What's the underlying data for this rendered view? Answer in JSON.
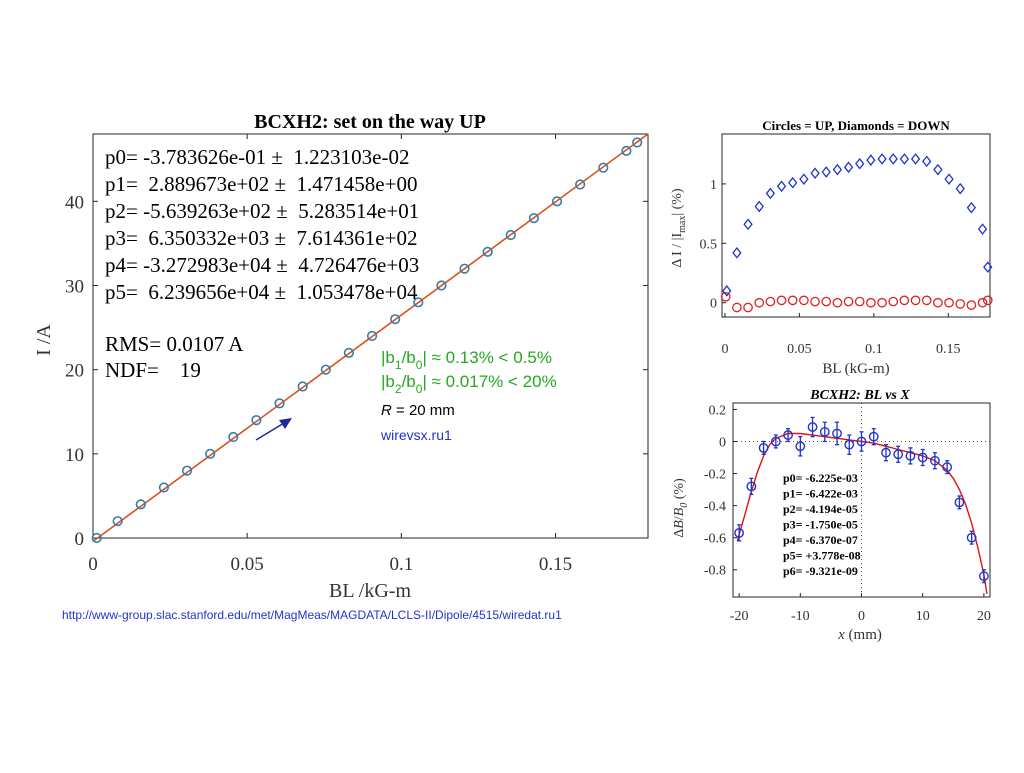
{
  "main": {
    "title": "BCXH2: set on the way UP",
    "xlabel": "BL /kG-m",
    "ylabel": "I /A",
    "fit_lines": [
      "p0= -3.783626e-01 ±  1.223103e-02",
      "p1=  2.889673e+02 ±  1.471458e+00",
      "p2= -5.639263e+02 ±  5.283514e+01",
      "p3=  6.350332e+03 ±  7.614361e+02",
      "p4= -3.272983e+04 ±  4.726476e+03",
      "p5=  6.239656e+04 ±  1.053478e+04"
    ],
    "rms": "RMS= 0.0107 A",
    "ndf": "NDF=    19",
    "b1": {
      "a": "|b",
      "s1": "1",
      "m": "/b",
      "s2": "0",
      "r": "| ≈ 0.13% < 0.5%"
    },
    "b2": {
      "a": "|b",
      "s1": "2",
      "m": "/b",
      "s2": "0",
      "r": "| ≈ 0.017% < 20%"
    },
    "radius": {
      "sym": "R",
      "val": " = 20 mm"
    },
    "source": "wirevsx.ru1",
    "url": "http://www-group.slac.stanford.edu/met/MagMeas/MAGDATA/LCLS-II/Dipole/4515/wiredat.ru1",
    "colors": {
      "points": "#3a7ca5",
      "fit": "#d95319",
      "green": "#22aa22",
      "blue": "#2233cc"
    }
  },
  "chart_data": [
    {
      "type": "scatter",
      "title": "BCXH2: set on the way UP",
      "xlabel": "BL /kG-m",
      "ylabel": "I /A",
      "xlim": [
        0,
        0.18
      ],
      "ylim": [
        0,
        48
      ],
      "xticks": [
        "0",
        "0.05",
        "0.1",
        "0.15"
      ],
      "yticks": [
        "0",
        "10",
        "20",
        "30",
        "40"
      ],
      "points": [
        [
          0.0012,
          0
        ],
        [
          0.008,
          2
        ],
        [
          0.0155,
          4
        ],
        [
          0.023,
          6
        ],
        [
          0.0305,
          8
        ],
        [
          0.038,
          10
        ],
        [
          0.0455,
          12
        ],
        [
          0.053,
          14
        ],
        [
          0.0605,
          16
        ],
        [
          0.068,
          18
        ],
        [
          0.0755,
          20
        ],
        [
          0.083,
          22
        ],
        [
          0.0905,
          24
        ],
        [
          0.098,
          26
        ],
        [
          0.1055,
          28
        ],
        [
          0.113,
          30
        ],
        [
          0.1205,
          32
        ],
        [
          0.128,
          34
        ],
        [
          0.1355,
          36
        ],
        [
          0.143,
          38
        ],
        [
          0.1505,
          40
        ],
        [
          0.158,
          42
        ],
        [
          0.1655,
          44
        ],
        [
          0.173,
          46
        ],
        [
          0.1765,
          47
        ]
      ],
      "fit_line": [
        [
          0,
          -0.4
        ],
        [
          0.18,
          48
        ]
      ]
    },
    {
      "type": "scatter",
      "title": "Circles = UP, Diamonds = DOWN",
      "xlabel": "BL (kG-m)",
      "ylabel": "Δ I / |I_max| (%)",
      "xlim": [
        -0.002,
        0.178
      ],
      "ylim": [
        -0.12,
        1.42
      ],
      "xticks": [
        "0",
        "0.05",
        "0.1",
        "0.15"
      ],
      "yticks": [
        "0",
        "0.5",
        "1"
      ],
      "series": [
        {
          "values": [
            [
              0.0005,
              0.05
            ],
            [
              0.008,
              -0.04
            ],
            [
              0.0155,
              -0.04
            ],
            [
              0.023,
              0.0
            ],
            [
              0.0305,
              0.01
            ],
            [
              0.038,
              0.02
            ],
            [
              0.0455,
              0.02
            ],
            [
              0.053,
              0.02
            ],
            [
              0.0605,
              0.01
            ],
            [
              0.068,
              0.01
            ],
            [
              0.0755,
              0.0
            ],
            [
              0.083,
              0.01
            ],
            [
              0.0905,
              0.01
            ],
            [
              0.098,
              0.0
            ],
            [
              0.1055,
              0.0
            ],
            [
              0.113,
              0.01
            ],
            [
              0.1205,
              0.02
            ],
            [
              0.128,
              0.02
            ],
            [
              0.1355,
              0.02
            ],
            [
              0.143,
              0.0
            ],
            [
              0.1505,
              0.0
            ],
            [
              0.158,
              -0.01
            ],
            [
              0.1655,
              -0.02
            ],
            [
              0.173,
              0.0
            ],
            [
              0.1765,
              0.02
            ]
          ]
        },
        {
          "values": [
            [
              0.0012,
              0.1
            ],
            [
              0.008,
              0.42
            ],
            [
              0.0155,
              0.66
            ],
            [
              0.023,
              0.81
            ],
            [
              0.0305,
              0.92
            ],
            [
              0.038,
              0.98
            ],
            [
              0.0455,
              1.01
            ],
            [
              0.053,
              1.04
            ],
            [
              0.0605,
              1.09
            ],
            [
              0.068,
              1.1
            ],
            [
              0.0755,
              1.12
            ],
            [
              0.083,
              1.14
            ],
            [
              0.0905,
              1.17
            ],
            [
              0.098,
              1.2
            ],
            [
              0.1055,
              1.21
            ],
            [
              0.113,
              1.21
            ],
            [
              0.1205,
              1.21
            ],
            [
              0.128,
              1.21
            ],
            [
              0.1355,
              1.19
            ],
            [
              0.143,
              1.12
            ],
            [
              0.1505,
              1.04
            ],
            [
              0.158,
              0.96
            ],
            [
              0.1655,
              0.8
            ],
            [
              0.173,
              0.62
            ],
            [
              0.1765,
              0.3
            ]
          ]
        }
      ]
    },
    {
      "type": "scatter",
      "title": "BCXH2: BL vs X",
      "xlabel": "x (mm)",
      "ylabel": "ΔB/B_0 (%)",
      "xlim": [
        -21,
        21
      ],
      "ylim": [
        -0.97,
        0.24
      ],
      "xticks": [
        "-20",
        "-10",
        "0",
        "10",
        "20"
      ],
      "yticks": [
        "0.2",
        "0",
        "-0.2",
        "-0.4",
        "-0.6",
        "-0.8"
      ],
      "fit_params": [
        "p0= -6.225e-03",
        "p1= -6.422e-03",
        "p2= -4.194e-05",
        "p3= -1.750e-05",
        "p4= -6.370e-07",
        "p5= +3.778e-08",
        "p6= -9.321e-09"
      ],
      "points": [
        {
          "x": -20,
          "y": -0.57,
          "err": 0.05
        },
        {
          "x": -18,
          "y": -0.28,
          "err": 0.05
        },
        {
          "x": -16,
          "y": -0.04,
          "err": 0.04
        },
        {
          "x": -14,
          "y": 0.0,
          "err": 0.04
        },
        {
          "x": -12,
          "y": 0.04,
          "err": 0.04
        },
        {
          "x": -10,
          "y": -0.03,
          "err": 0.06
        },
        {
          "x": -8,
          "y": 0.09,
          "err": 0.06
        },
        {
          "x": -6,
          "y": 0.06,
          "err": 0.06
        },
        {
          "x": -4,
          "y": 0.05,
          "err": 0.07
        },
        {
          "x": -2,
          "y": -0.02,
          "err": 0.06
        },
        {
          "x": 0,
          "y": 0.0,
          "err": 0.06
        },
        {
          "x": 2,
          "y": 0.03,
          "err": 0.05
        },
        {
          "x": 4,
          "y": -0.07,
          "err": 0.05
        },
        {
          "x": 6,
          "y": -0.08,
          "err": 0.05
        },
        {
          "x": 8,
          "y": -0.09,
          "err": 0.05
        },
        {
          "x": 10,
          "y": -0.1,
          "err": 0.05
        },
        {
          "x": 12,
          "y": -0.12,
          "err": 0.05
        },
        {
          "x": 14,
          "y": -0.16,
          "err": 0.04
        },
        {
          "x": 16,
          "y": -0.38,
          "err": 0.04
        },
        {
          "x": 18,
          "y": -0.6,
          "err": 0.04
        },
        {
          "x": 20,
          "y": -0.84,
          "err": 0.04
        }
      ],
      "fit_curve": [
        [
          -20.3,
          -0.62
        ],
        [
          -19,
          -0.45
        ],
        [
          -18,
          -0.31
        ],
        [
          -17,
          -0.19
        ],
        [
          -16,
          -0.09
        ],
        [
          -15,
          -0.02
        ],
        [
          -14,
          0.02
        ],
        [
          -12,
          0.05
        ],
        [
          -10,
          0.05
        ],
        [
          -8,
          0.04
        ],
        [
          -6,
          0.03
        ],
        [
          -4,
          0.02
        ],
        [
          -2,
          0.01
        ],
        [
          0,
          0.0
        ],
        [
          2,
          -0.01
        ],
        [
          4,
          -0.03
        ],
        [
          6,
          -0.05
        ],
        [
          8,
          -0.07
        ],
        [
          10,
          -0.09
        ],
        [
          12,
          -0.12
        ],
        [
          14,
          -0.18
        ],
        [
          15,
          -0.23
        ],
        [
          16,
          -0.3
        ],
        [
          17,
          -0.39
        ],
        [
          18,
          -0.51
        ],
        [
          19,
          -0.66
        ],
        [
          20,
          -0.83
        ],
        [
          20.5,
          -0.95
        ]
      ]
    }
  ],
  "top_right": {
    "title": "Circles = UP, Diamonds = DOWN",
    "xlabel": "BL (kG-m)"
  },
  "bottom_right": {
    "title": "BCXH2: BL vs X",
    "xlabel_var": "x",
    "xlabel_unit": " (mm)"
  }
}
